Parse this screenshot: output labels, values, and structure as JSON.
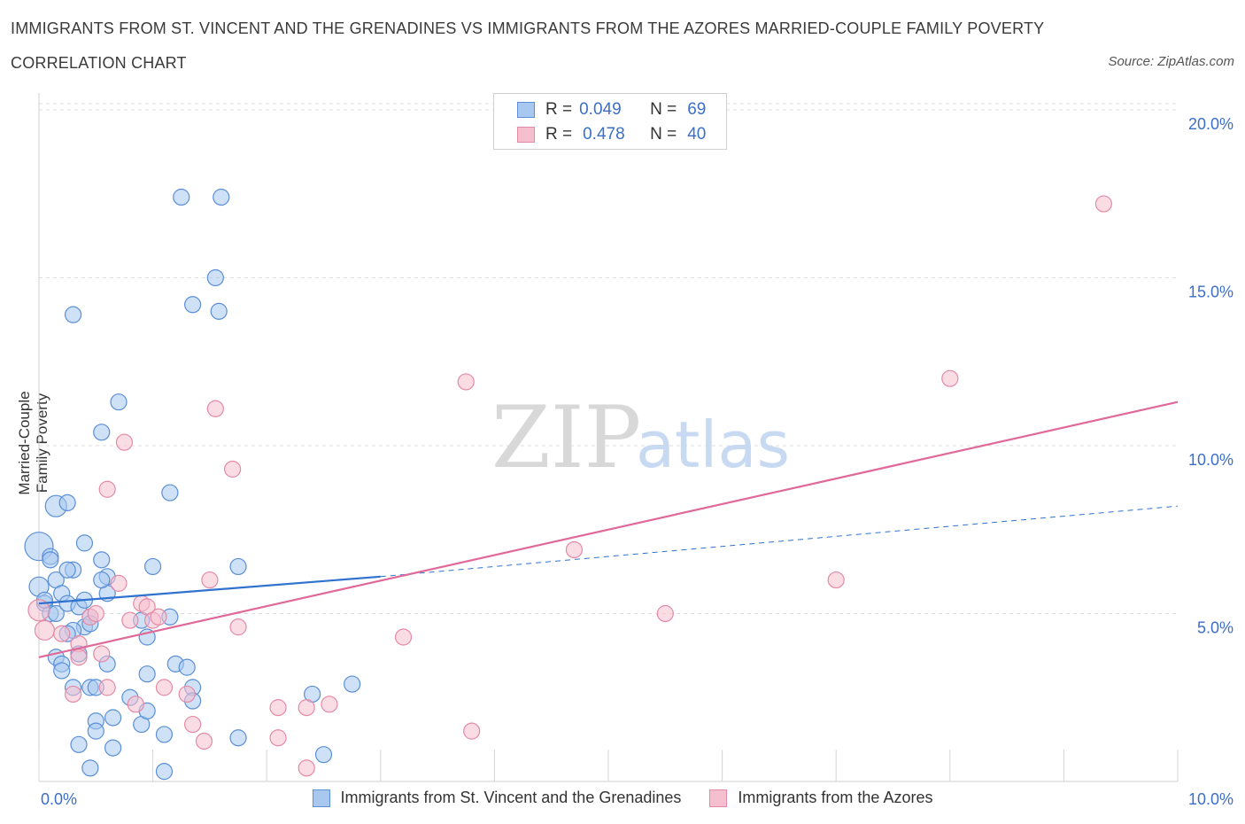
{
  "title_line1": "IMMIGRANTS FROM ST. VINCENT AND THE GRENADINES VS IMMIGRANTS FROM THE AZORES MARRIED-COUPLE FAMILY POVERTY",
  "title_line2": "CORRELATION CHART",
  "source": "Source: ZipAtlas.com",
  "watermark": {
    "zip": "ZIP",
    "atlas": "atlas"
  },
  "legend": {
    "r_label": "R =",
    "n_label": "N =",
    "rows": [
      {
        "r": "0.049",
        "n": "69"
      },
      {
        "r": "0.478",
        "n": "40"
      }
    ]
  },
  "colors": {
    "blue_fill": "#a8c8f0",
    "blue_stroke": "#5b8fd6",
    "blue_line": "#2f72d0",
    "pink_fill": "#f6bfd0",
    "pink_stroke": "#e48aa6",
    "pink_line": "#e0699a",
    "tick_text": "#3b6fc9",
    "grid": "#dcdcdc"
  },
  "chart_data": {
    "type": "scatter",
    "xlabel": "",
    "ylabel": "Married-Couple Family Poverty",
    "xlim": [
      0,
      10
    ],
    "ylim": [
      0,
      20.5
    ],
    "x_tick_labels": [
      {
        "v": 0,
        "t": "0.0%"
      },
      {
        "v": 10,
        "t": "10.0%"
      }
    ],
    "y_tick_labels": [
      {
        "v": 5,
        "t": "5.0%"
      },
      {
        "v": 10,
        "t": "10.0%"
      },
      {
        "v": 15,
        "t": "15.0%"
      },
      {
        "v": 20,
        "t": "20.0%"
      }
    ],
    "legend_placement": "top-center",
    "series": [
      {
        "name": "Immigrants from St. Vincent and the Grenadines",
        "color": "#5b8fd6",
        "trend": {
          "x": [
            0,
            3.0
          ],
          "y": [
            5.3,
            6.1
          ],
          "dashed_to": [
            10,
            8.2
          ]
        },
        "points": [
          [
            0.0,
            7.0,
            16
          ],
          [
            0.0,
            5.8,
            11
          ],
          [
            0.05,
            5.3,
            9
          ],
          [
            0.1,
            5.0,
            9
          ],
          [
            0.15,
            5.0,
            9
          ],
          [
            0.1,
            6.7,
            9
          ],
          [
            0.1,
            6.6,
            9
          ],
          [
            0.15,
            6.0,
            9
          ],
          [
            0.2,
            5.6,
            9
          ],
          [
            0.25,
            5.3,
            9
          ],
          [
            0.35,
            5.2,
            9
          ],
          [
            0.15,
            8.2,
            12
          ],
          [
            0.25,
            8.3,
            9
          ],
          [
            0.3,
            6.3,
            9
          ],
          [
            0.4,
            7.1,
            9
          ],
          [
            0.55,
            6.6,
            9
          ],
          [
            0.6,
            6.1,
            9
          ],
          [
            0.6,
            5.6,
            9
          ],
          [
            0.45,
            4.9,
            9
          ],
          [
            0.4,
            4.6,
            9
          ],
          [
            0.3,
            4.5,
            9
          ],
          [
            0.25,
            4.4,
            9
          ],
          [
            0.35,
            3.8,
            9
          ],
          [
            0.15,
            3.7,
            9
          ],
          [
            0.2,
            3.5,
            9
          ],
          [
            0.2,
            3.3,
            9
          ],
          [
            0.3,
            2.8,
            9
          ],
          [
            0.45,
            2.8,
            9
          ],
          [
            0.5,
            2.8,
            9
          ],
          [
            0.6,
            3.5,
            9
          ],
          [
            0.5,
            1.8,
            9
          ],
          [
            0.5,
            1.5,
            9
          ],
          [
            0.65,
            1.9,
            9
          ],
          [
            0.35,
            1.1,
            9
          ],
          [
            0.45,
            0.4,
            9
          ],
          [
            0.65,
            1.0,
            9
          ],
          [
            0.8,
            2.5,
            9
          ],
          [
            0.9,
            1.7,
            9
          ],
          [
            0.95,
            2.1,
            9
          ],
          [
            1.1,
            1.4,
            9
          ],
          [
            1.1,
            0.3,
            9
          ],
          [
            0.95,
            3.2,
            9
          ],
          [
            0.95,
            4.3,
            9
          ],
          [
            0.9,
            4.8,
            9
          ],
          [
            1.0,
            6.4,
            9
          ],
          [
            1.15,
            8.6,
            9
          ],
          [
            0.55,
            10.4,
            9
          ],
          [
            0.7,
            11.3,
            9
          ],
          [
            0.3,
            13.9,
            9
          ],
          [
            1.25,
            17.4,
            9
          ],
          [
            1.6,
            17.4,
            9
          ],
          [
            1.55,
            15.0,
            9
          ],
          [
            1.35,
            14.2,
            9
          ],
          [
            1.58,
            14.0,
            9
          ],
          [
            1.75,
            6.4,
            9
          ],
          [
            1.2,
            3.5,
            9
          ],
          [
            1.3,
            3.4,
            9
          ],
          [
            1.35,
            2.8,
            9
          ],
          [
            1.35,
            2.4,
            9
          ],
          [
            1.75,
            1.3,
            9
          ],
          [
            2.4,
            2.6,
            9
          ],
          [
            2.75,
            2.9,
            9
          ],
          [
            2.5,
            0.8,
            9
          ],
          [
            0.4,
            5.4,
            9
          ],
          [
            0.05,
            5.4,
            9
          ],
          [
            0.25,
            6.3,
            9
          ],
          [
            0.55,
            6.0,
            9
          ],
          [
            0.45,
            4.7,
            9
          ],
          [
            1.15,
            4.9,
            9
          ]
        ]
      },
      {
        "name": "Immigrants from the Azores",
        "color": "#e48aa6",
        "trend": {
          "x": [
            0,
            10
          ],
          "y": [
            3.7,
            11.3
          ]
        },
        "points": [
          [
            0.0,
            5.1,
            12
          ],
          [
            0.05,
            4.5,
            11
          ],
          [
            0.2,
            4.4,
            9
          ],
          [
            0.35,
            4.1,
            9
          ],
          [
            0.45,
            4.9,
            9
          ],
          [
            0.5,
            5.0,
            9
          ],
          [
            0.55,
            3.8,
            9
          ],
          [
            0.7,
            5.9,
            9
          ],
          [
            0.8,
            4.8,
            9
          ],
          [
            0.9,
            5.3,
            9
          ],
          [
            0.95,
            5.2,
            9
          ],
          [
            1.0,
            4.8,
            9
          ],
          [
            1.05,
            4.9,
            9
          ],
          [
            0.35,
            3.7,
            9
          ],
          [
            0.3,
            2.6,
            9
          ],
          [
            0.6,
            2.8,
            9
          ],
          [
            0.85,
            2.3,
            9
          ],
          [
            1.1,
            2.8,
            9
          ],
          [
            1.3,
            2.6,
            9
          ],
          [
            1.35,
            1.7,
            9
          ],
          [
            1.45,
            1.2,
            9
          ],
          [
            1.5,
            6.0,
            9
          ],
          [
            1.75,
            4.6,
            9
          ],
          [
            2.1,
            2.2,
            9
          ],
          [
            2.35,
            2.2,
            9
          ],
          [
            2.55,
            2.3,
            9
          ],
          [
            2.1,
            1.3,
            9
          ],
          [
            2.35,
            0.4,
            9
          ],
          [
            3.2,
            4.3,
            9
          ],
          [
            3.75,
            11.9,
            9
          ],
          [
            3.8,
            1.5,
            9
          ],
          [
            4.7,
            6.9,
            9
          ],
          [
            5.5,
            5.0,
            9
          ],
          [
            7.0,
            6.0,
            9
          ],
          [
            8.0,
            12.0,
            9
          ],
          [
            9.35,
            17.2,
            9
          ],
          [
            0.6,
            8.7,
            9
          ],
          [
            0.75,
            10.1,
            9
          ],
          [
            1.55,
            11.1,
            9
          ],
          [
            1.7,
            9.3,
            9
          ]
        ]
      }
    ]
  }
}
